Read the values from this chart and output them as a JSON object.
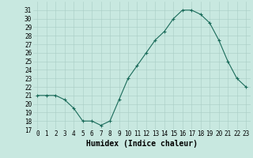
{
  "x": [
    0,
    1,
    2,
    3,
    4,
    5,
    6,
    7,
    8,
    9,
    10,
    11,
    12,
    13,
    14,
    15,
    16,
    17,
    18,
    19,
    20,
    21,
    22,
    23
  ],
  "y": [
    21,
    21,
    21,
    20.5,
    19.5,
    18,
    18,
    17.5,
    18,
    20.5,
    23,
    24.5,
    26,
    27.5,
    28.5,
    30,
    31,
    31,
    30.5,
    29.5,
    27.5,
    25,
    23,
    22
  ],
  "xlabel": "Humidex (Indice chaleur)",
  "ylim": [
    17,
    32
  ],
  "xlim": [
    -0.5,
    23.5
  ],
  "yticks": [
    17,
    18,
    19,
    20,
    21,
    22,
    23,
    24,
    25,
    26,
    27,
    28,
    29,
    30,
    31
  ],
  "xticks": [
    0,
    1,
    2,
    3,
    4,
    5,
    6,
    7,
    8,
    9,
    10,
    11,
    12,
    13,
    14,
    15,
    16,
    17,
    18,
    19,
    20,
    21,
    22,
    23
  ],
  "line_color": "#1a6b5a",
  "marker_color": "#1a6b5a",
  "bg_color": "#c8e8e0",
  "grid_color": "#a8ccc4",
  "tick_fontsize": 5.5,
  "xlabel_fontsize": 7.0,
  "linewidth": 0.8,
  "markersize": 3.5
}
